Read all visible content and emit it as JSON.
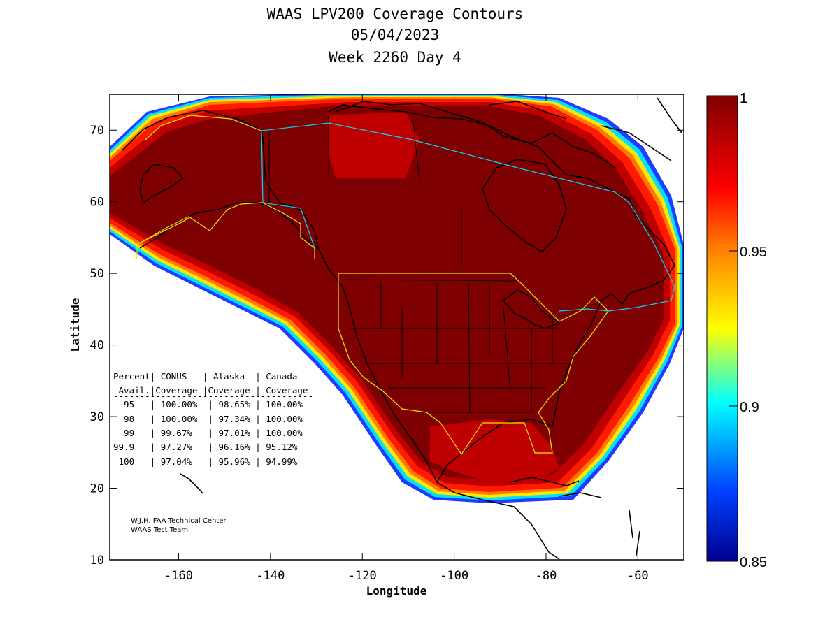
{
  "title": {
    "line1": "WAAS LPV200 Coverage Contours",
    "line2": "05/04/2023",
    "line3": "Week 2260 Day 4"
  },
  "map": {
    "xlabel": "Longitude",
    "ylabel": "Latitude",
    "x_ticks": [
      "-160",
      "-140",
      "-120",
      "-100",
      "-80",
      "-60"
    ],
    "y_ticks": [
      "10",
      "20",
      "30",
      "40",
      "50",
      "60",
      "70"
    ],
    "x_range": [
      -175,
      -50
    ],
    "y_range": [
      10,
      75
    ]
  },
  "colorbar": {
    "min": 0.85,
    "max": 1,
    "labels": [
      "1",
      "0.95",
      "0.9",
      "0.85"
    ],
    "colors": [
      "#7f0000",
      "#ff0000",
      "#ff8000",
      "#ffff00",
      "#00ffff",
      "#0080ff",
      "#00008f"
    ]
  },
  "coverage_table": {
    "header1": "Percent| CONUS   | Alaska  | Canada",
    "header2": " Avail.|Coverage |Coverage | Coverage",
    "separator": "--------------------------------------",
    "rows": [
      "  95   | 100.00%  | 98.65% | 100.00%",
      "  98   | 100.00%  | 97.34% | 100.00%",
      "  99   | 99.67%   | 97.01% | 100.00%",
      "99.9   | 97.27%   | 96.16% | 95.12%",
      " 100   | 97.04%   | 95.96% | 94.99%"
    ]
  },
  "credit": {
    "line1": "W.J.H. FAA Technical Center",
    "line2": "WAAS Test Team"
  }
}
